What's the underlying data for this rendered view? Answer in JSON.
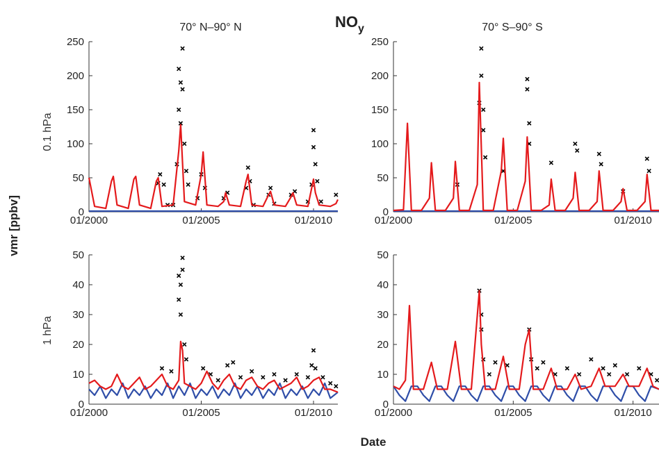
{
  "figure": {
    "title": "NO",
    "title_subscript": "y",
    "ylabel": "vmr [ppbv]",
    "xlabel": "Date"
  },
  "rows": [
    {
      "label": "0.1 hPa"
    },
    {
      "label": "1 hPa"
    }
  ],
  "columns": [
    {
      "title": "70° N–90° N"
    },
    {
      "title": "70° S–90° S"
    }
  ],
  "chart_data": [
    {
      "type": "line",
      "title": "70° N–90° N",
      "row": "0.1 hPa",
      "xlim": [
        "2000-01",
        "2011-02"
      ],
      "ylim": [
        0,
        250
      ],
      "yticks": [
        0,
        50,
        100,
        150,
        200,
        250
      ],
      "xticks": [
        "01/2000",
        "01/2005",
        "01/2010"
      ],
      "series": [
        {
          "color": "#e41a1c",
          "style": "line",
          "x": [
            "2000-01",
            "2000-04",
            "2000-10",
            "2001-01",
            "2001-02",
            "2001-04",
            "2001-10",
            "2002-01",
            "2002-02",
            "2002-04",
            "2002-10",
            "2003-01",
            "2003-02",
            "2003-04",
            "2003-10",
            "2004-01",
            "2004-02",
            "2004-04",
            "2004-10",
            "2005-01",
            "2005-02",
            "2005-04",
            "2005-10",
            "2006-01",
            "2006-02",
            "2006-04",
            "2006-10",
            "2007-01",
            "2007-02",
            "2007-04",
            "2007-10",
            "2008-01",
            "2008-02",
            "2008-04",
            "2008-10",
            "2009-01",
            "2009-02",
            "2009-04",
            "2009-10",
            "2010-01",
            "2010-02",
            "2010-04",
            "2010-10",
            "2011-01",
            "2011-02"
          ],
          "y": [
            50,
            8,
            5,
            45,
            52,
            10,
            5,
            48,
            52,
            10,
            5,
            45,
            50,
            8,
            10,
            90,
            128,
            15,
            10,
            55,
            88,
            10,
            8,
            15,
            28,
            10,
            8,
            45,
            55,
            10,
            8,
            25,
            30,
            10,
            8,
            22,
            28,
            10,
            8,
            48,
            28,
            10,
            8,
            12,
            18
          ]
        },
        {
          "color": "#2f4ea8",
          "style": "line",
          "x": [
            "2000-01",
            "2011-02"
          ],
          "y": [
            1,
            1
          ]
        },
        {
          "color": "#000000",
          "style": "markers",
          "x": [
            "2003-02",
            "2003-03",
            "2003-05",
            "2003-07",
            "2003-10",
            "2003-12",
            "2004-01",
            "2004-01",
            "2004-02",
            "2004-02",
            "2004-03",
            "2004-03",
            "2004-04",
            "2004-05",
            "2004-06",
            "2004-11",
            "2005-01",
            "2005-03",
            "2006-01",
            "2006-03",
            "2007-01",
            "2007-02",
            "2007-03",
            "2007-05",
            "2008-01",
            "2008-02",
            "2008-04",
            "2009-01",
            "2009-03",
            "2009-10",
            "2009-12",
            "2010-01",
            "2010-01",
            "2010-02",
            "2010-03",
            "2010-05",
            "2011-01"
          ],
          "y": [
            42,
            55,
            40,
            10,
            10,
            70,
            150,
            210,
            190,
            130,
            180,
            240,
            100,
            60,
            40,
            20,
            55,
            35,
            20,
            28,
            35,
            65,
            45,
            10,
            25,
            35,
            12,
            25,
            30,
            15,
            40,
            120,
            95,
            70,
            45,
            15,
            25
          ]
        }
      ]
    },
    {
      "type": "line",
      "title": "70° S–90° S",
      "row": "0.1 hPa",
      "xlim": [
        "2000-01",
        "2011-02"
      ],
      "ylim": [
        0,
        250
      ],
      "yticks": [
        0,
        50,
        100,
        150,
        200,
        250
      ],
      "xticks": [
        "01/2000",
        "01/2005",
        "01/2010"
      ],
      "series": [
        {
          "color": "#e41a1c",
          "style": "line",
          "x": [
            "2000-01",
            "2000-06",
            "2000-08",
            "2000-10",
            "2001-03",
            "2001-07",
            "2001-08",
            "2001-10",
            "2002-03",
            "2002-07",
            "2002-08",
            "2002-10",
            "2003-03",
            "2003-07",
            "2003-08",
            "2003-10",
            "2004-03",
            "2004-07",
            "2004-08",
            "2004-10",
            "2005-03",
            "2005-07",
            "2005-08",
            "2005-10",
            "2006-03",
            "2006-07",
            "2006-08",
            "2006-10",
            "2007-03",
            "2007-07",
            "2007-08",
            "2007-10",
            "2008-03",
            "2008-07",
            "2008-08",
            "2008-10",
            "2009-03",
            "2009-07",
            "2009-08",
            "2009-10",
            "2010-03",
            "2010-07",
            "2010-08",
            "2010-10",
            "2011-02"
          ],
          "y": [
            2,
            3,
            130,
            2,
            2,
            20,
            72,
            2,
            2,
            20,
            74,
            2,
            2,
            40,
            190,
            2,
            2,
            60,
            108,
            2,
            2,
            45,
            110,
            2,
            2,
            10,
            48,
            2,
            2,
            20,
            58,
            2,
            2,
            15,
            60,
            2,
            2,
            15,
            34,
            2,
            2,
            15,
            55,
            2,
            2
          ]
        },
        {
          "color": "#2f4ea8",
          "style": "line",
          "x": [
            "2000-01",
            "2011-02"
          ],
          "y": [
            1,
            1
          ]
        },
        {
          "color": "#000000",
          "style": "markers",
          "x": [
            "2002-09",
            "2003-08",
            "2003-09",
            "2003-09",
            "2003-10",
            "2003-10",
            "2003-11",
            "2004-08",
            "2005-08",
            "2005-08",
            "2005-09",
            "2005-09",
            "2006-08",
            "2007-08",
            "2007-09",
            "2008-08",
            "2008-09",
            "2009-08",
            "2010-08",
            "2010-09"
          ],
          "y": [
            40,
            160,
            240,
            200,
            150,
            120,
            80,
            60,
            195,
            180,
            130,
            100,
            72,
            100,
            90,
            85,
            70,
            30,
            78,
            60
          ]
        }
      ]
    },
    {
      "type": "line",
      "title": "70° N–90° N",
      "row": "1 hPa",
      "xlim": [
        "2000-01",
        "2011-02"
      ],
      "ylim": [
        0,
        50
      ],
      "yticks": [
        0,
        10,
        20,
        30,
        40,
        50
      ],
      "xticks": [
        "01/2000",
        "01/2005",
        "01/2010"
      ],
      "series": [
        {
          "color": "#e41a1c",
          "style": "line",
          "x": [
            "2000-01",
            "2000-04",
            "2000-07",
            "2000-10",
            "2001-01",
            "2001-04",
            "2001-07",
            "2001-10",
            "2002-01",
            "2002-04",
            "2002-07",
            "2002-10",
            "2003-01",
            "2003-04",
            "2003-07",
            "2003-10",
            "2004-01",
            "2004-02",
            "2004-03",
            "2004-04",
            "2004-07",
            "2004-10",
            "2005-01",
            "2005-04",
            "2005-07",
            "2005-10",
            "2006-01",
            "2006-04",
            "2006-07",
            "2006-10",
            "2007-01",
            "2007-04",
            "2007-07",
            "2007-10",
            "2008-01",
            "2008-04",
            "2008-07",
            "2008-10",
            "2009-01",
            "2009-04",
            "2009-07",
            "2009-10",
            "2010-01",
            "2010-04",
            "2010-07",
            "2010-10",
            "2011-02"
          ],
          "y": [
            7,
            8,
            6,
            5,
            6,
            10,
            6,
            5,
            7,
            9,
            5,
            6,
            8,
            10,
            6,
            5,
            8,
            21,
            18,
            7,
            6,
            5,
            7,
            11,
            7,
            5,
            8,
            10,
            6,
            5,
            8,
            9,
            6,
            5,
            7,
            8,
            5,
            6,
            7,
            9,
            5,
            6,
            8,
            9,
            5,
            5,
            4
          ]
        },
        {
          "color": "#2f4ea8",
          "style": "line",
          "x": [
            "2000-01",
            "2000-04",
            "2000-07",
            "2000-10",
            "2001-01",
            "2001-04",
            "2001-07",
            "2001-10",
            "2002-01",
            "2002-04",
            "2002-07",
            "2002-10",
            "2003-01",
            "2003-04",
            "2003-07",
            "2003-10",
            "2004-01",
            "2004-04",
            "2004-07",
            "2004-10",
            "2005-01",
            "2005-04",
            "2005-07",
            "2005-10",
            "2006-01",
            "2006-04",
            "2006-07",
            "2006-10",
            "2007-01",
            "2007-04",
            "2007-07",
            "2007-10",
            "2008-01",
            "2008-04",
            "2008-07",
            "2008-10",
            "2009-01",
            "2009-04",
            "2009-07",
            "2009-10",
            "2010-01",
            "2010-04",
            "2010-07",
            "2010-10",
            "2011-02"
          ],
          "y": [
            5,
            3,
            6,
            2,
            5,
            3,
            7,
            2,
            5,
            3,
            6,
            2,
            5,
            3,
            7,
            2,
            6,
            3,
            7,
            2,
            5,
            3,
            6,
            2,
            5,
            3,
            7,
            2,
            5,
            3,
            6,
            2,
            5,
            3,
            7,
            2,
            5,
            3,
            6,
            2,
            5,
            3,
            7,
            2,
            4
          ]
        },
        {
          "color": "#000000",
          "style": "markers",
          "x": [
            "2003-04",
            "2003-09",
            "2004-01",
            "2004-01",
            "2004-02",
            "2004-02",
            "2004-03",
            "2004-03",
            "2004-04",
            "2004-05",
            "2005-02",
            "2005-06",
            "2005-10",
            "2006-03",
            "2006-06",
            "2006-10",
            "2007-04",
            "2007-10",
            "2008-04",
            "2008-10",
            "2009-04",
            "2009-10",
            "2009-12",
            "2010-01",
            "2010-02",
            "2010-06",
            "2010-10",
            "2011-01"
          ],
          "y": [
            12,
            11,
            35,
            43,
            40,
            30,
            45,
            49,
            20,
            15,
            12,
            10,
            8,
            13,
            14,
            9,
            11,
            9,
            10,
            8,
            10,
            9,
            13,
            18,
            12,
            9,
            7,
            6
          ]
        }
      ]
    },
    {
      "type": "line",
      "title": "70° S–90° S",
      "row": "1 hPa",
      "xlim": [
        "2000-01",
        "2011-02"
      ],
      "ylim": [
        0,
        50
      ],
      "yticks": [
        0,
        10,
        20,
        30,
        40,
        50
      ],
      "xticks": [
        "01/2000",
        "01/2005",
        "01/2010"
      ],
      "series": [
        {
          "color": "#e41a1c",
          "style": "line",
          "x": [
            "2000-01",
            "2000-04",
            "2000-07",
            "2000-09",
            "2000-11",
            "2001-04",
            "2001-08",
            "2001-11",
            "2002-04",
            "2002-08",
            "2002-11",
            "2003-04",
            "2003-08",
            "2003-09",
            "2003-11",
            "2004-04",
            "2004-08",
            "2004-11",
            "2005-04",
            "2005-07",
            "2005-09",
            "2005-11",
            "2006-04",
            "2006-08",
            "2006-11",
            "2007-04",
            "2007-08",
            "2007-11",
            "2008-04",
            "2008-08",
            "2008-11",
            "2009-04",
            "2009-08",
            "2009-11",
            "2010-04",
            "2010-08",
            "2010-11",
            "2011-02"
          ],
          "y": [
            6,
            5,
            8,
            33,
            5,
            5,
            14,
            5,
            5,
            21,
            5,
            5,
            38,
            20,
            5,
            5,
            16,
            5,
            5,
            20,
            25,
            5,
            5,
            12,
            5,
            5,
            10,
            5,
            6,
            12,
            6,
            6,
            10,
            6,
            6,
            12,
            6,
            5
          ]
        },
        {
          "color": "#2f4ea8",
          "style": "line",
          "x": [
            "2000-01",
            "2000-04",
            "2000-07",
            "2000-10",
            "2001-01",
            "2001-04",
            "2001-07",
            "2001-10",
            "2002-01",
            "2002-04",
            "2002-07",
            "2002-10",
            "2003-01",
            "2003-04",
            "2003-07",
            "2003-10",
            "2004-01",
            "2004-04",
            "2004-07",
            "2004-10",
            "2005-01",
            "2005-04",
            "2005-07",
            "2005-10",
            "2006-01",
            "2006-04",
            "2006-07",
            "2006-10",
            "2007-01",
            "2007-04",
            "2007-07",
            "2007-10",
            "2008-01",
            "2008-04",
            "2008-07",
            "2008-10",
            "2009-01",
            "2009-04",
            "2009-07",
            "2009-10",
            "2010-01",
            "2010-04",
            "2010-07",
            "2010-10",
            "2011-02"
          ],
          "y": [
            6,
            3,
            1,
            6,
            6,
            3,
            1,
            6,
            6,
            3,
            1,
            6,
            6,
            3,
            1,
            6,
            6,
            3,
            1,
            6,
            6,
            3,
            1,
            6,
            6,
            3,
            1,
            6,
            6,
            3,
            1,
            6,
            6,
            3,
            1,
            6,
            6,
            3,
            1,
            6,
            6,
            3,
            1,
            6,
            5
          ]
        },
        {
          "color": "#000000",
          "style": "markers",
          "x": [
            "2003-08",
            "2003-09",
            "2003-09",
            "2003-10",
            "2004-01",
            "2004-04",
            "2004-10",
            "2005-09",
            "2005-10",
            "2006-01",
            "2006-04",
            "2006-10",
            "2007-04",
            "2007-10",
            "2008-04",
            "2008-10",
            "2009-01",
            "2009-04",
            "2009-10",
            "2010-04",
            "2010-10",
            "2011-01"
          ],
          "y": [
            38,
            30,
            25,
            15,
            10,
            14,
            13,
            25,
            15,
            12,
            14,
            10,
            12,
            10,
            15,
            12,
            10,
            13,
            10,
            12,
            10,
            8
          ]
        }
      ]
    }
  ]
}
